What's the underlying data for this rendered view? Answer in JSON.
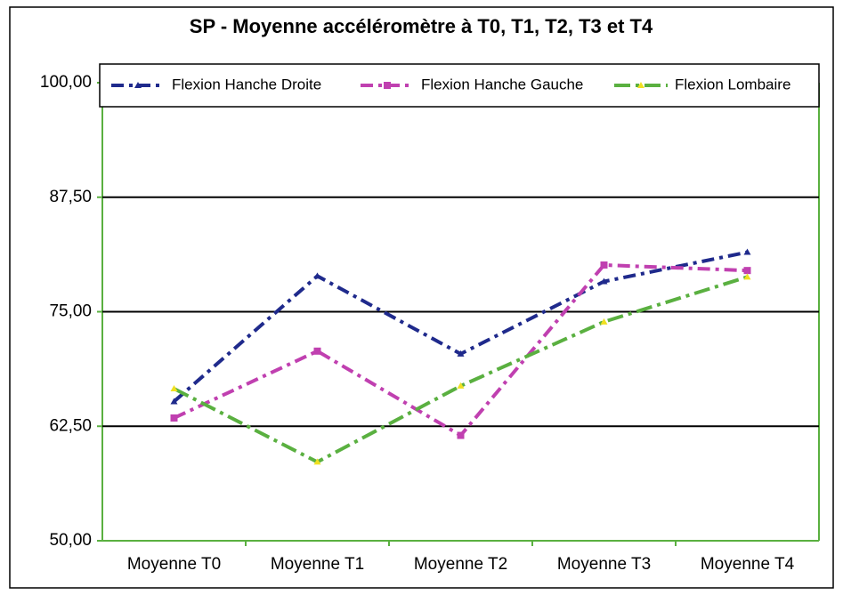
{
  "chart_data": {
    "type": "line",
    "title": "SP - Moyenne accéléromètre à T0, T1, T2, T3 et T4",
    "categories": [
      "Moyenne T0",
      "Moyenne T1",
      "Moyenne T2",
      "Moyenne T3",
      "Moyenne T4"
    ],
    "series": [
      {
        "name": "Flexion Hanche Droite",
        "color": "#1f2a8c",
        "values": [
          65.2,
          78.9,
          70.4,
          78.3,
          81.5
        ]
      },
      {
        "name": "Flexion Hanche Gauche",
        "color": "#c040b0",
        "values": [
          63.4,
          70.7,
          61.5,
          80.1,
          79.5
        ]
      },
      {
        "name": "Flexion Lombaire",
        "color": "#5ab040",
        "values": [
          66.6,
          58.6,
          66.9,
          73.9,
          78.8
        ]
      }
    ],
    "ylim": [
      50,
      100
    ],
    "yticks": [
      {
        "value": 50,
        "label": "50,00"
      },
      {
        "value": 62.5,
        "label": "62,50"
      },
      {
        "value": 75,
        "label": "75,00"
      },
      {
        "value": 87.5,
        "label": "87,50"
      },
      {
        "value": 100,
        "label": "100,00"
      }
    ],
    "grid": true,
    "legend": "top"
  }
}
